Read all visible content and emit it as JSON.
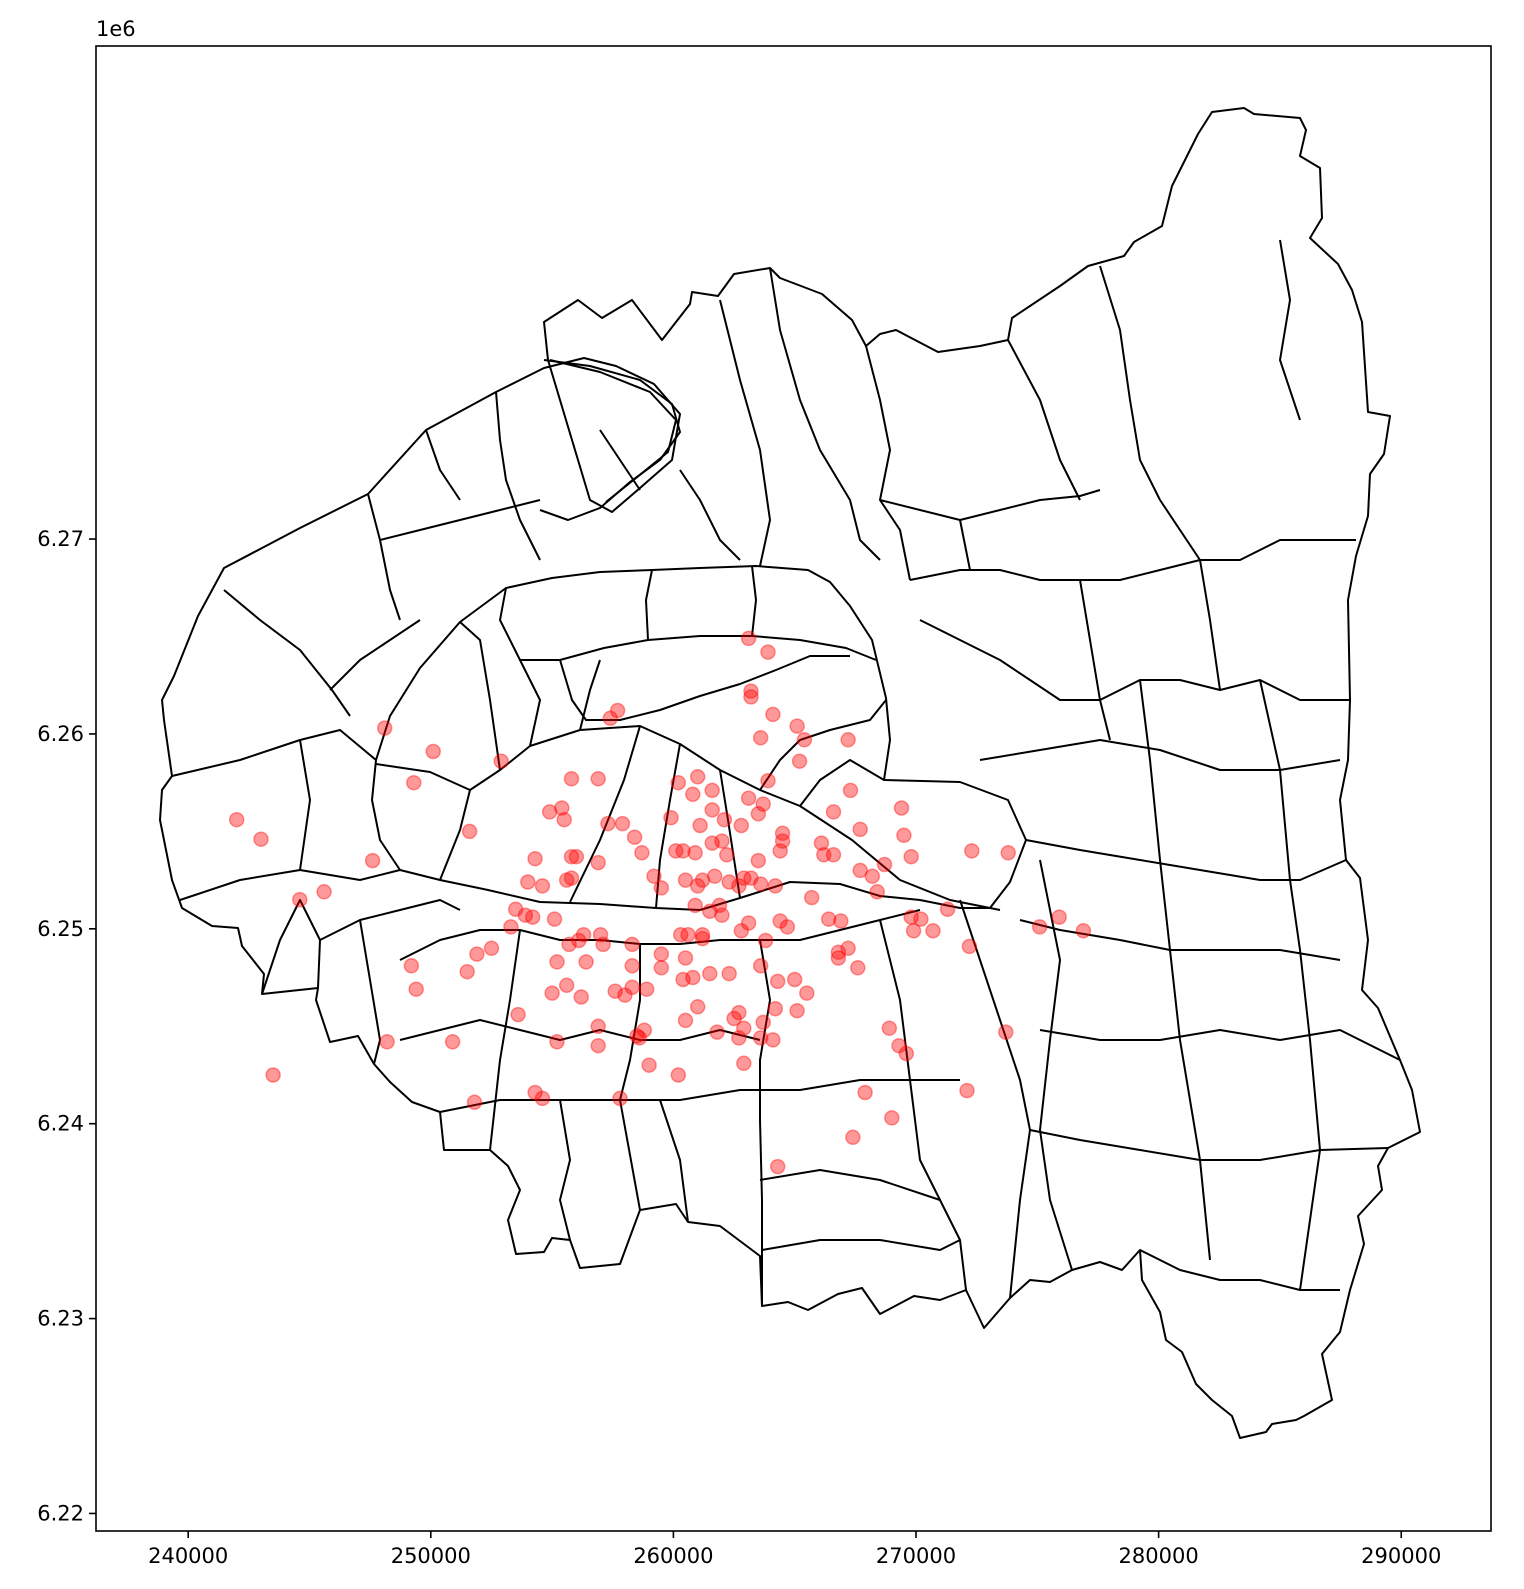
{
  "chart_data": {
    "type": "scatter",
    "title": "",
    "xlabel": "",
    "ylabel": "",
    "y_offset_text": "1e6",
    "xlim": [
      236200,
      293700
    ],
    "ylim": [
      6219100,
      6295300
    ],
    "x_ticks": [
      240000,
      250000,
      260000,
      270000,
      280000,
      290000
    ],
    "x_tick_labels": [
      "240000",
      "250000",
      "260000",
      "270000",
      "280000",
      "290000"
    ],
    "y_ticks": [
      6220000,
      6230000,
      6240000,
      6250000,
      6260000,
      6270000
    ],
    "y_tick_labels": [
      "6.22",
      "6.23",
      "6.24",
      "6.25",
      "6.26",
      "6.27"
    ],
    "grid": false,
    "layers": [
      {
        "name": "",
        "kind": "polygon-boundaries",
        "edgecolor": "#000000",
        "facecolor": "none"
      },
      {
        "name": "",
        "kind": "points",
        "color": "#ff0000",
        "alpha": 0.4
      }
    ],
    "points": [
      [
        263100,
        6264900
      ],
      [
        263900,
        6264200
      ],
      [
        263200,
        6262200
      ],
      [
        263200,
        6261900
      ],
      [
        264100,
        6261000
      ],
      [
        263600,
        6259800
      ],
      [
        265100,
        6260400
      ],
      [
        265400,
        6259700
      ],
      [
        265200,
        6258600
      ],
      [
        267200,
        6259700
      ],
      [
        257700,
        6261200
      ],
      [
        257400,
        6260800
      ],
      [
        248100,
        6260300
      ],
      [
        250100,
        6259100
      ],
      [
        252900,
        6258600
      ],
      [
        249300,
        6257500
      ],
      [
        255800,
        6257700
      ],
      [
        256900,
        6257700
      ],
      [
        260200,
        6257500
      ],
      [
        261000,
        6257800
      ],
      [
        260800,
        6256900
      ],
      [
        261600,
        6257100
      ],
      [
        263900,
        6257600
      ],
      [
        267300,
        6257100
      ],
      [
        254900,
        6256000
      ],
      [
        255400,
        6256200
      ],
      [
        255500,
        6255600
      ],
      [
        257300,
        6255400
      ],
      [
        257900,
        6255400
      ],
      [
        259900,
        6255700
      ],
      [
        261600,
        6256100
      ],
      [
        262100,
        6255600
      ],
      [
        263100,
        6256700
      ],
      [
        263700,
        6256400
      ],
      [
        263500,
        6255900
      ],
      [
        266600,
        6256000
      ],
      [
        261100,
        6255300
      ],
      [
        262800,
        6255300
      ],
      [
        264500,
        6254900
      ],
      [
        264500,
        6254500
      ],
      [
        264400,
        6254000
      ],
      [
        266100,
        6254400
      ],
      [
        266600,
        6253800
      ],
      [
        267700,
        6255100
      ],
      [
        269500,
        6254800
      ],
      [
        269400,
        6256200
      ],
      [
        251600,
        6255000
      ],
      [
        242000,
        6255600
      ],
      [
        243000,
        6254600
      ],
      [
        247600,
        6253500
      ],
      [
        244600,
        6251500
      ],
      [
        245600,
        6251900
      ],
      [
        256000,
        6253700
      ],
      [
        255800,
        6253700
      ],
      [
        256900,
        6253400
      ],
      [
        258400,
        6254700
      ],
      [
        258700,
        6253900
      ],
      [
        260100,
        6254000
      ],
      [
        260400,
        6254000
      ],
      [
        260900,
        6253900
      ],
      [
        261600,
        6254400
      ],
      [
        262000,
        6254500
      ],
      [
        262200,
        6253800
      ],
      [
        263500,
        6253500
      ],
      [
        266200,
        6253800
      ],
      [
        267700,
        6253000
      ],
      [
        268200,
        6252700
      ],
      [
        268700,
        6253300
      ],
      [
        269800,
        6253700
      ],
      [
        272300,
        6254000
      ],
      [
        273800,
        6253900
      ],
      [
        254300,
        6253600
      ],
      [
        255600,
        6252500
      ],
      [
        255800,
        6252600
      ],
      [
        254000,
        6252400
      ],
      [
        254600,
        6252200
      ],
      [
        259200,
        6252700
      ],
      [
        259500,
        6252100
      ],
      [
        260500,
        6252500
      ],
      [
        261200,
        6252500
      ],
      [
        261700,
        6252700
      ],
      [
        261000,
        6252200
      ],
      [
        262300,
        6252400
      ],
      [
        262700,
        6252200
      ],
      [
        262900,
        6252600
      ],
      [
        263200,
        6252600
      ],
      [
        263600,
        6252300
      ],
      [
        264200,
        6252200
      ],
      [
        265700,
        6251600
      ],
      [
        268400,
        6251900
      ],
      [
        271300,
        6251000
      ],
      [
        260900,
        6251200
      ],
      [
        261900,
        6251200
      ],
      [
        262000,
        6250700
      ],
      [
        261500,
        6250900
      ],
      [
        253500,
        6251000
      ],
      [
        253900,
        6250700
      ],
      [
        254200,
        6250600
      ],
      [
        255100,
        6250500
      ],
      [
        253300,
        6250100
      ],
      [
        257000,
        6249700
      ],
      [
        256300,
        6249700
      ],
      [
        256100,
        6249400
      ],
      [
        255700,
        6249200
      ],
      [
        258300,
        6249200
      ],
      [
        260300,
        6249700
      ],
      [
        260600,
        6249700
      ],
      [
        261200,
        6249500
      ],
      [
        261200,
        6249700
      ],
      [
        263100,
        6250300
      ],
      [
        264400,
        6250400
      ],
      [
        264700,
        6250100
      ],
      [
        266400,
        6250500
      ],
      [
        266900,
        6250400
      ],
      [
        269800,
        6250600
      ],
      [
        270200,
        6250500
      ],
      [
        269900,
        6249900
      ],
      [
        270700,
        6249900
      ],
      [
        275100,
        6250100
      ],
      [
        275900,
        6250600
      ],
      [
        276900,
        6249900
      ],
      [
        252500,
        6249000
      ],
      [
        251900,
        6248700
      ],
      [
        251500,
        6247800
      ],
      [
        249200,
        6248100
      ],
      [
        249400,
        6246900
      ],
      [
        255200,
        6248300
      ],
      [
        256400,
        6248300
      ],
      [
        257100,
        6249200
      ],
      [
        258300,
        6248100
      ],
      [
        259500,
        6248700
      ],
      [
        259500,
        6248000
      ],
      [
        260500,
        6248500
      ],
      [
        260400,
        6247400
      ],
      [
        260800,
        6247500
      ],
      [
        261500,
        6247700
      ],
      [
        262300,
        6247700
      ],
      [
        263600,
        6248100
      ],
      [
        263800,
        6249400
      ],
      [
        262800,
        6249900
      ],
      [
        265000,
        6247400
      ],
      [
        267600,
        6248000
      ],
      [
        267200,
        6249000
      ],
      [
        266800,
        6248800
      ],
      [
        266800,
        6248500
      ],
      [
        272200,
        6249100
      ],
      [
        255600,
        6247100
      ],
      [
        255000,
        6246700
      ],
      [
        256200,
        6246500
      ],
      [
        257600,
        6246800
      ],
      [
        258000,
        6246600
      ],
      [
        258300,
        6247000
      ],
      [
        258900,
        6246900
      ],
      [
        264300,
        6247300
      ],
      [
        265500,
        6246700
      ],
      [
        253600,
        6245600
      ],
      [
        256900,
        6245000
      ],
      [
        258500,
        6244500
      ],
      [
        258800,
        6244800
      ],
      [
        258600,
        6244400
      ],
      [
        260500,
        6245300
      ],
      [
        261000,
        6246000
      ],
      [
        261800,
        6244700
      ],
      [
        262500,
        6245400
      ],
      [
        262700,
        6245700
      ],
      [
        262900,
        6244900
      ],
      [
        263700,
        6245200
      ],
      [
        264200,
        6245900
      ],
      [
        265100,
        6245800
      ],
      [
        256900,
        6244000
      ],
      [
        255200,
        6244200
      ],
      [
        250900,
        6244200
      ],
      [
        248200,
        6244200
      ],
      [
        259000,
        6243000
      ],
      [
        260200,
        6242500
      ],
      [
        262900,
        6243100
      ],
      [
        262700,
        6244400
      ],
      [
        263600,
        6244400
      ],
      [
        264100,
        6244300
      ],
      [
        268900,
        6244900
      ],
      [
        269300,
        6244000
      ],
      [
        269600,
        6243600
      ],
      [
        273700,
        6244700
      ],
      [
        243500,
        6242500
      ],
      [
        251800,
        6241100
      ],
      [
        254300,
        6241600
      ],
      [
        254600,
        6241300
      ],
      [
        257800,
        6241300
      ],
      [
        267900,
        6241600
      ],
      [
        272100,
        6241700
      ],
      [
        269000,
        6240300
      ],
      [
        267400,
        6239300
      ],
      [
        264300,
        6237800
      ]
    ]
  }
}
